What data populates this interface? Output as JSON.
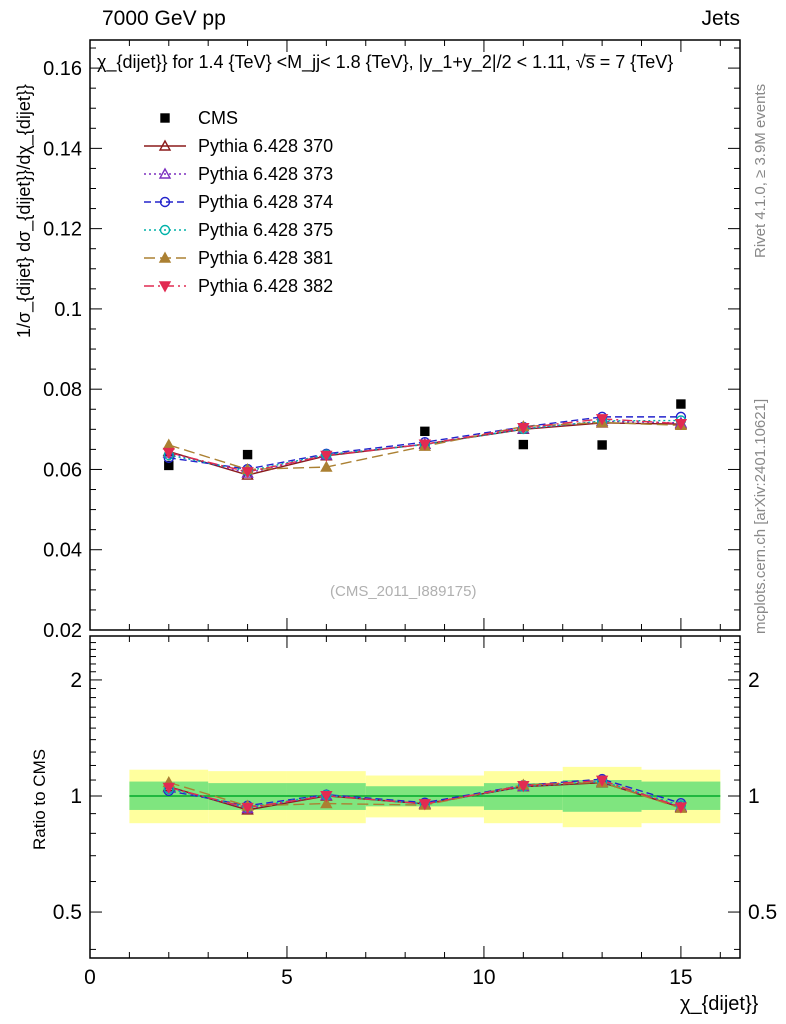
{
  "header": {
    "left": "7000 GeV pp",
    "right": "Jets"
  },
  "side_texts": {
    "top_right": "Rivet 4.1.0, ≥ 3.9M events",
    "bottom_right": "mcplots.cern.ch [arXiv:2401.10621]"
  },
  "watermark": "(CMS_2011_I889175)",
  "chart_data": [
    {
      "type": "line",
      "panel": "main",
      "title": "χ_{dijet}} for 1.4 {TeV} <M_jj< 1.8 {TeV}, |y_1+y_2|/2 < 1.11, √s̅ = 7 {TeV}",
      "xlabel": "χ_{dijet}}",
      "ylabel": "1/σ_{dijet} dσ_{dijet}}/dχ_{dijet}}",
      "xlim": [
        0,
        16.5
      ],
      "ylim": [
        0.02,
        0.167
      ],
      "grid": false,
      "legend_position": "upper-left",
      "x": [
        2,
        4,
        6,
        8.5,
        11,
        13,
        15
      ],
      "xticks": [
        {
          "v": 0,
          "t": "0"
        },
        {
          "v": 5,
          "t": "5"
        },
        {
          "v": 10,
          "t": "10"
        },
        {
          "v": 15,
          "t": "15"
        }
      ],
      "yticks": [
        {
          "v": 0.02,
          "t": "0.02"
        },
        {
          "v": 0.04,
          "t": "0.04"
        },
        {
          "v": 0.06,
          "t": "0.06"
        },
        {
          "v": 0.08,
          "t": "0.08"
        },
        {
          "v": 0.1,
          "t": "0.1"
        },
        {
          "v": 0.12,
          "t": "0.12"
        },
        {
          "v": 0.14,
          "t": "0.14"
        },
        {
          "v": 0.16,
          "t": "0.16"
        }
      ],
      "series": [
        {
          "name": "CMS",
          "color": "#000000",
          "marker": "square",
          "filled": true,
          "line": "none",
          "values": [
            0.061,
            0.0637,
            0.0634,
            0.0695,
            0.0662,
            0.0661,
            0.0763
          ]
        },
        {
          "name": "Pythia 6.428 370",
          "color": "#8b1a1a",
          "marker": "triangle-up",
          "filled": false,
          "line": "solid",
          "values": [
            0.0645,
            0.0586,
            0.0634,
            0.0663,
            0.07,
            0.0716,
            0.0713
          ]
        },
        {
          "name": "Pythia 6.428 373",
          "color": "#7b2fbf",
          "marker": "triangle-up",
          "filled": false,
          "line": "dotted",
          "values": [
            0.0641,
            0.0591,
            0.0636,
            0.0663,
            0.0701,
            0.072,
            0.0716
          ]
        },
        {
          "name": "Pythia 6.428 374",
          "color": "#2323cc",
          "marker": "circle",
          "filled": false,
          "line": "dashed",
          "values": [
            0.0629,
            0.0601,
            0.0639,
            0.0668,
            0.0706,
            0.0731,
            0.0731
          ]
        },
        {
          "name": "Pythia 6.428 375",
          "color": "#00b2a9",
          "marker": "circle",
          "filled": false,
          "line": "dotted",
          "values": [
            0.0636,
            0.0596,
            0.0637,
            0.0662,
            0.0701,
            0.0721,
            0.0722
          ]
        },
        {
          "name": "Pythia 6.428 381",
          "color": "#ab8032",
          "marker": "triangle-up",
          "filled": true,
          "line": "longdash",
          "values": [
            0.0661,
            0.06,
            0.0606,
            0.0658,
            0.0707,
            0.0717,
            0.071
          ]
        },
        {
          "name": "Pythia 6.428 382",
          "color": "#e12b52",
          "marker": "triangle-down",
          "filled": true,
          "line": "dashdot",
          "values": [
            0.0642,
            0.0594,
            0.0635,
            0.0663,
            0.0704,
            0.0726,
            0.0714
          ]
        }
      ]
    },
    {
      "type": "ratio",
      "panel": "ratio",
      "ylabel": "Ratio to CMS",
      "yscale": "log",
      "ylim": [
        0.38,
        2.6
      ],
      "x": [
        2,
        4,
        6,
        8.5,
        11,
        13,
        15
      ],
      "yticks": [
        {
          "v": 0.5,
          "t": "0.5"
        },
        {
          "v": 1,
          "t": "1"
        },
        {
          "v": 2,
          "t": "2"
        }
      ],
      "bands": {
        "xedges": [
          1,
          3,
          5,
          7,
          10,
          12,
          14,
          16
        ],
        "yellow_lo": [
          0.85,
          0.85,
          0.85,
          0.88,
          0.85,
          0.83,
          0.85
        ],
        "yellow_hi": [
          1.17,
          1.16,
          1.16,
          1.13,
          1.16,
          1.19,
          1.17
        ],
        "green_lo": [
          0.92,
          0.92,
          0.92,
          0.94,
          0.92,
          0.91,
          0.92
        ],
        "green_hi": [
          1.09,
          1.08,
          1.08,
          1.06,
          1.08,
          1.1,
          1.09
        ],
        "yellow_color": "#ffff9e",
        "green_color": "#7fe57f",
        "line_color": "#00aa2a"
      },
      "series": [
        {
          "name": "Pythia 6.428 370",
          "color": "#8b1a1a",
          "marker": "triangle-up",
          "filled": false,
          "line": "solid",
          "values": [
            1.057,
            0.92,
            1.0,
            0.954,
            1.057,
            1.083,
            0.934
          ]
        },
        {
          "name": "Pythia 6.428 373",
          "color": "#7b2fbf",
          "marker": "triangle-up",
          "filled": false,
          "line": "dotted",
          "values": [
            1.051,
            0.928,
            1.003,
            0.954,
            1.059,
            1.089,
            0.938
          ]
        },
        {
          "name": "Pythia 6.428 374",
          "color": "#2323cc",
          "marker": "circle",
          "filled": false,
          "line": "dashed",
          "values": [
            1.031,
            0.944,
            1.008,
            0.961,
            1.066,
            1.106,
            0.958
          ]
        },
        {
          "name": "Pythia 6.428 375",
          "color": "#00b2a9",
          "marker": "circle",
          "filled": false,
          "line": "dotted",
          "values": [
            1.043,
            0.936,
            1.005,
            0.952,
            1.059,
            1.091,
            0.946
          ]
        },
        {
          "name": "Pythia 6.428 381",
          "color": "#ab8032",
          "marker": "triangle-up",
          "filled": true,
          "line": "longdash",
          "values": [
            1.084,
            0.942,
            0.956,
            0.947,
            1.068,
            1.085,
            0.93
          ]
        },
        {
          "name": "Pythia 6.428 382",
          "color": "#e12b52",
          "marker": "triangle-down",
          "filled": true,
          "line": "dashdot",
          "values": [
            1.052,
            0.933,
            1.002,
            0.954,
            1.063,
            1.098,
            0.936
          ]
        }
      ]
    }
  ]
}
